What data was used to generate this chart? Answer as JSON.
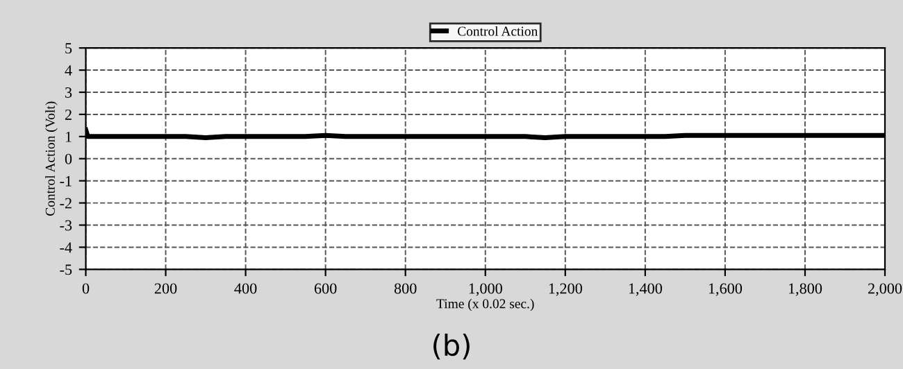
{
  "chart_data": {
    "type": "line",
    "xlabel": "Time (x 0.02 sec.)",
    "ylabel": "Control Action (Volt)",
    "annotations": [
      "(b)"
    ],
    "x": [
      0,
      5,
      50,
      100,
      150,
      200,
      250,
      300,
      350,
      400,
      450,
      500,
      550,
      600,
      650,
      700,
      750,
      800,
      850,
      900,
      950,
      1000,
      1050,
      1100,
      1150,
      1200,
      1250,
      1300,
      1350,
      1400,
      1450,
      1500,
      1550,
      1600,
      1650,
      1700,
      1750,
      1800,
      1850,
      1900,
      1950,
      2000
    ],
    "series": [
      {
        "name": "Control Action",
        "color": "#000000",
        "values": [
          1.3,
          1.0,
          1.0,
          1.0,
          1.0,
          1.0,
          1.0,
          0.95,
          1.0,
          1.0,
          1.0,
          1.0,
          1.0,
          1.05,
          1.0,
          1.0,
          1.0,
          1.0,
          1.0,
          1.0,
          1.0,
          1.0,
          1.0,
          1.0,
          0.95,
          1.0,
          1.0,
          1.0,
          1.0,
          1.0,
          1.0,
          1.05,
          1.05,
          1.05,
          1.05,
          1.05,
          1.05,
          1.05,
          1.05,
          1.05,
          1.05,
          1.05
        ]
      }
    ],
    "xlim": [
      0,
      2000
    ],
    "xticks": [
      0,
      200,
      400,
      600,
      800,
      {
        "value": 1000,
        "label": "1,000"
      },
      {
        "value": 1200,
        "label": "1,200"
      },
      {
        "value": 1400,
        "label": "1,400"
      },
      {
        "value": 1600,
        "label": "1,600"
      },
      {
        "value": 1800,
        "label": "1,800"
      },
      {
        "value": 2000,
        "label": "2,000"
      }
    ],
    "ylim": [
      -5,
      5
    ],
    "yticks": [
      -5,
      -4,
      -3,
      -2,
      -1,
      0,
      1,
      2,
      3,
      4,
      5
    ],
    "grid": true,
    "legend": "top",
    "line_style": "solid",
    "marker": "none"
  }
}
